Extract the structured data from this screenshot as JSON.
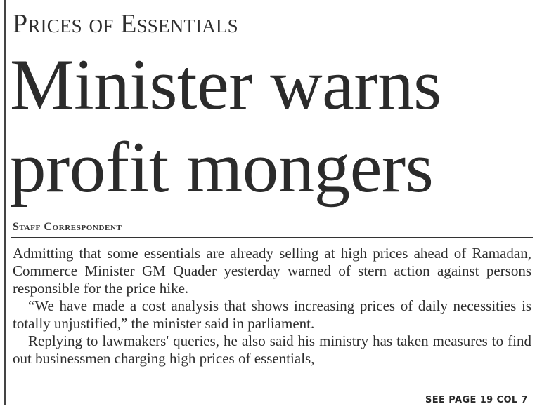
{
  "article": {
    "kicker": "Prices of Essentials",
    "headline_line1": "Minister warns",
    "headline_line2": "profit mongers",
    "byline": "Staff Correspondent",
    "paragraphs": [
      "Admitting that some essentials are already selling at high prices ahead of Ramadan, Commerce Minister GM Quader yesterday warned of stern action against persons responsible for the price hike.",
      "“We have made a cost analysis that shows increasing prices of daily necessities is totally unjustified,” the minister said in parliament.",
      "Replying to lawmakers' queries, he also said his ministry has  taken measures to find out businessmen charging high prices of essentials,"
    ],
    "jump": "SEE PAGE 19 COL 7"
  }
}
